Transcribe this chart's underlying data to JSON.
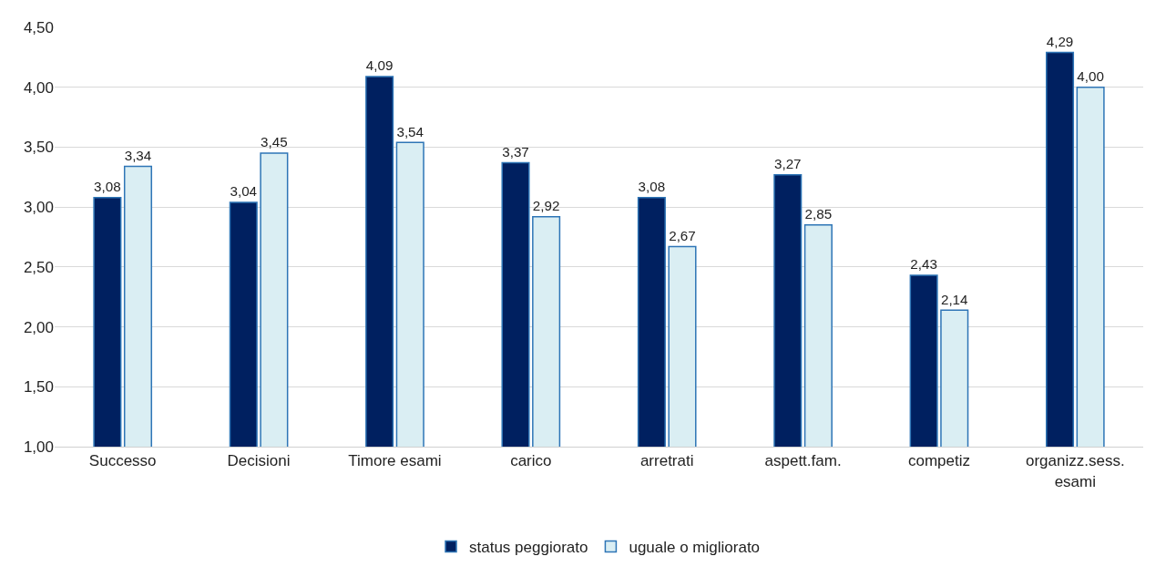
{
  "chart_data": {
    "type": "bar",
    "categories": [
      "Successo",
      "Decisioni",
      "Timore esami",
      "carico",
      "arretrati",
      "aspett.fam.",
      "competiz",
      "organizz.sess. esami"
    ],
    "series": [
      {
        "name": "status peggiorato",
        "color": "#002060",
        "values": [
          3.08,
          3.04,
          4.09,
          3.37,
          3.08,
          3.27,
          2.43,
          4.29
        ],
        "value_labels": [
          "3,08",
          "3,04",
          "4,09",
          "3,37",
          "3,08",
          "3,27",
          "2,43",
          "4,29"
        ]
      },
      {
        "name": "uguale o migliorato",
        "color": "#daeef3",
        "values": [
          3.34,
          3.45,
          3.54,
          2.92,
          2.67,
          2.85,
          2.14,
          4.0
        ],
        "value_labels": [
          "3,34",
          "3,45",
          "3,54",
          "2,92",
          "2,67",
          "2,85",
          "2,14",
          "4,00"
        ]
      }
    ],
    "ylim": [
      1,
      4.5
    ],
    "yticks": [
      {
        "value": 1,
        "label": "1,00"
      },
      {
        "value": 1.5,
        "label": "1,50"
      },
      {
        "value": 2,
        "label": "2,00"
      },
      {
        "value": 2.5,
        "label": "2,50"
      },
      {
        "value": 3,
        "label": "3,00"
      },
      {
        "value": 3.5,
        "label": "3,50"
      },
      {
        "value": 4,
        "label": "4,00"
      },
      {
        "value": 4.5,
        "label": "4,50"
      }
    ],
    "grid": "y",
    "legend": "bottom"
  }
}
